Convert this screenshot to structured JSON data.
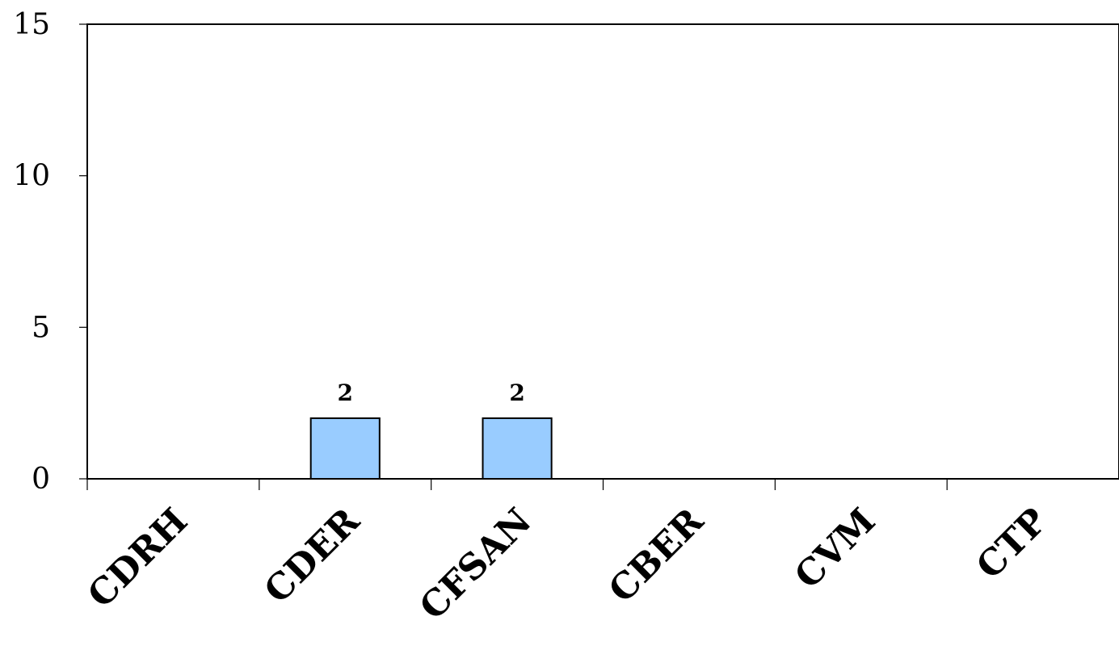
{
  "chart_data": {
    "type": "bar",
    "title": "",
    "xlabel": "",
    "ylabel": "",
    "categories": [
      "CDRH",
      "CDER",
      "CFSAN",
      "CBER",
      "CVM",
      "CTP"
    ],
    "values": [
      0,
      2,
      2,
      0,
      0,
      0
    ],
    "data_labels": [
      "",
      "2",
      "2",
      "",
      "",
      ""
    ],
    "ylim": [
      0,
      15
    ],
    "yticks": [
      0,
      5,
      10,
      15
    ],
    "ytick_labels": [
      "0",
      "5",
      "10",
      "15"
    ],
    "grid": false,
    "legend": "none",
    "bar_color": "#99CCFF",
    "border_color": "#000000"
  }
}
